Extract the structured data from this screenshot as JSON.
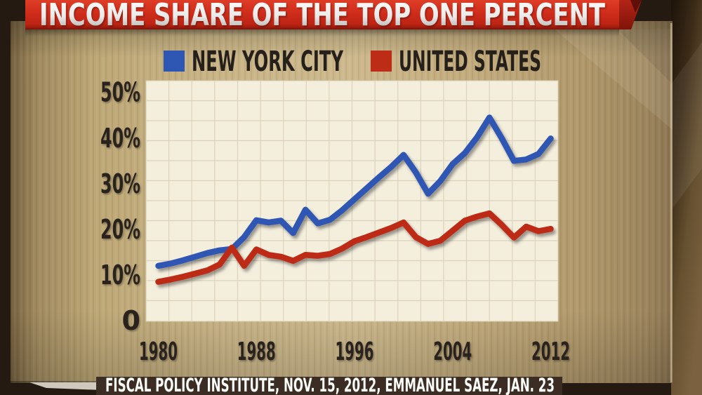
{
  "banner": {
    "title": "INCOME SHARE OF THE TOP ONE PERCENT",
    "color": "#cf2c1b"
  },
  "source_bar": {
    "text": "FISCAL POLICY INSTITUTE, NOV. 15, 2012, EMMANUEL SAEZ, JAN. 23"
  },
  "chart_data": {
    "type": "line",
    "title": "INCOME SHARE OF THE TOP ONE PERCENT",
    "xlabel": "",
    "ylabel": "",
    "x_tick_labels": [
      "1980",
      "1988",
      "1996",
      "2004",
      "2012"
    ],
    "x_tick_values": [
      1980,
      1988,
      1996,
      2004,
      2012
    ],
    "y_tick_labels": [
      "0",
      "10%",
      "20%",
      "30%",
      "40%",
      "50%"
    ],
    "y_tick_values": [
      0,
      10,
      20,
      30,
      40,
      50
    ],
    "x_range": [
      1979,
      2012.6
    ],
    "y_range": [
      0,
      52.5
    ],
    "grid": true,
    "legend_position": "top",
    "plot_bg": "#f4eedd",
    "grid_color": "#ddd3bb",
    "series": [
      {
        "name": "NEW YORK CITY",
        "color": "#2d57b2",
        "start_year": 1980,
        "values": [
          12.0,
          12.5,
          13.2,
          14.0,
          14.8,
          15.4,
          15.7,
          18.3,
          22.0,
          21.5,
          21.9,
          19.2,
          24.3,
          21.3,
          22.1,
          24.2,
          26.6,
          29.0,
          31.4,
          33.7,
          36.3,
          32.5,
          27.8,
          30.6,
          34.3,
          36.7,
          40.2,
          44.5,
          40.0,
          35.0,
          35.3,
          36.5,
          39.9
        ]
      },
      {
        "name": "UNITED STATES",
        "color": "#bd2c17",
        "start_year": 1980,
        "values": [
          8.5,
          9.0,
          9.6,
          10.3,
          11.0,
          12.3,
          16.0,
          12.0,
          15.6,
          14.4,
          14.0,
          13.1,
          14.4,
          14.2,
          14.6,
          15.8,
          17.4,
          18.3,
          19.3,
          20.3,
          21.5,
          18.3,
          16.8,
          17.5,
          19.7,
          21.9,
          22.8,
          23.5,
          21.0,
          18.2,
          20.6,
          19.6,
          20.1
        ]
      }
    ]
  }
}
